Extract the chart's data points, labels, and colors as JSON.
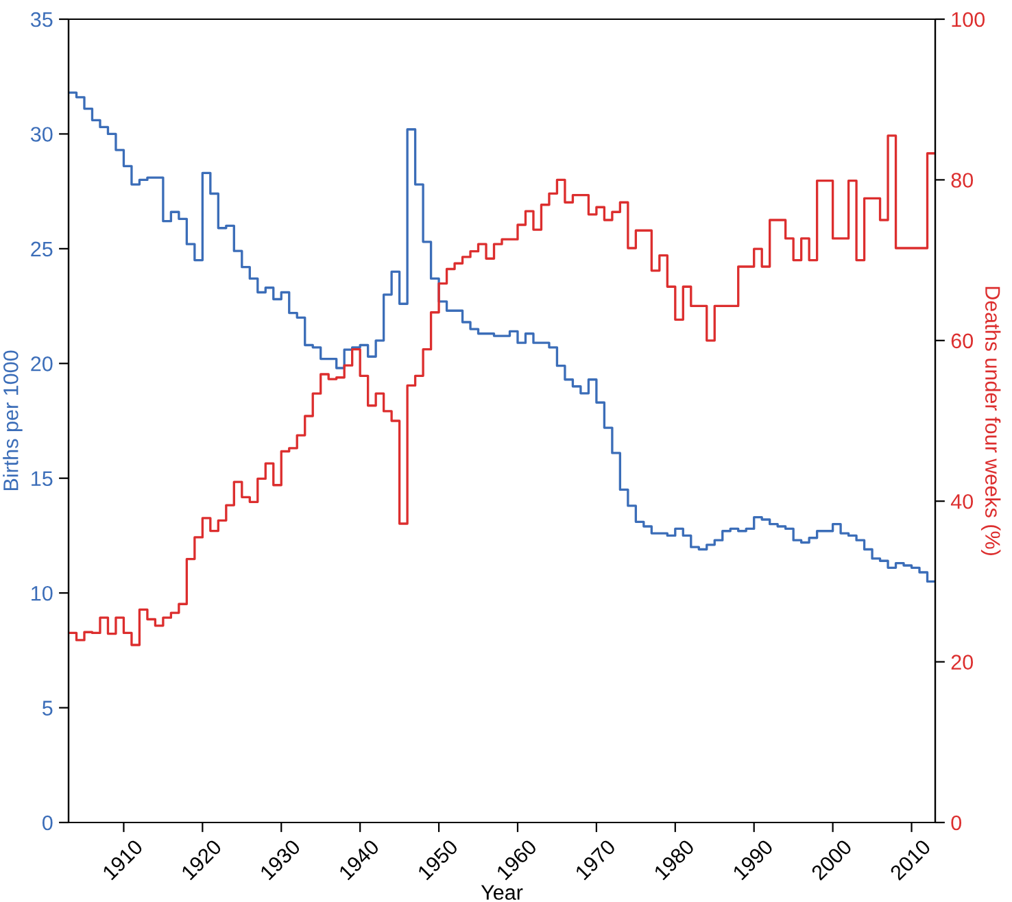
{
  "chart_data": {
    "type": "step",
    "xlabel": "Year",
    "ylabel": "Births per 1000",
    "y2label": "Deaths under four weeks (%)",
    "x": [
      1903,
      1904,
      1905,
      1906,
      1907,
      1908,
      1909,
      1910,
      1911,
      1912,
      1913,
      1914,
      1915,
      1916,
      1917,
      1918,
      1919,
      1920,
      1921,
      1922,
      1923,
      1924,
      1925,
      1926,
      1927,
      1928,
      1929,
      1930,
      1931,
      1932,
      1933,
      1934,
      1935,
      1936,
      1937,
      1938,
      1939,
      1940,
      1941,
      1942,
      1943,
      1944,
      1945,
      1946,
      1947,
      1948,
      1949,
      1950,
      1951,
      1952,
      1953,
      1954,
      1955,
      1956,
      1957,
      1958,
      1959,
      1960,
      1961,
      1962,
      1963,
      1964,
      1965,
      1966,
      1967,
      1968,
      1969,
      1970,
      1971,
      1972,
      1973,
      1974,
      1975,
      1976,
      1977,
      1978,
      1979,
      1980,
      1981,
      1982,
      1983,
      1984,
      1985,
      1986,
      1987,
      1988,
      1989,
      1990,
      1991,
      1992,
      1993,
      1994,
      1995,
      1996,
      1997,
      1998,
      1999,
      2000,
      2001,
      2002,
      2003,
      2004,
      2005,
      2006,
      2007,
      2008,
      2009,
      2010,
      2011,
      2012
    ],
    "series": [
      {
        "color": "#3b6db8",
        "values": [
          31.8,
          31.6,
          31.1,
          30.6,
          30.3,
          30.0,
          29.3,
          28.6,
          27.8,
          28.0,
          28.1,
          28.1,
          26.2,
          26.6,
          26.3,
          25.2,
          24.5,
          28.3,
          27.4,
          25.9,
          26.0,
          24.9,
          24.2,
          23.7,
          23.1,
          23.3,
          22.8,
          23.1,
          22.2,
          22.0,
          20.8,
          20.7,
          20.2,
          20.2,
          19.8,
          20.6,
          20.7,
          20.8,
          20.3,
          21.0,
          23.0,
          24.0,
          22.6,
          30.2,
          27.8,
          25.3,
          23.7,
          22.7,
          22.3,
          22.3,
          21.8,
          21.5,
          21.3,
          21.3,
          21.2,
          21.2,
          21.4,
          20.9,
          21.3,
          20.9,
          20.9,
          20.7,
          19.9,
          19.3,
          19.0,
          18.7,
          19.3,
          18.3,
          17.2,
          16.1,
          14.5,
          13.8,
          13.1,
          12.9,
          12.6,
          12.6,
          12.5,
          12.8,
          12.5,
          12.0,
          11.9,
          12.1,
          12.3,
          12.7,
          12.8,
          12.7,
          12.8,
          13.3,
          13.2,
          13.0,
          12.9,
          12.8,
          12.3,
          12.2,
          12.4,
          12.7,
          12.7,
          13.0,
          12.6,
          12.5,
          12.3,
          11.9,
          11.5,
          11.4,
          11.1,
          11.3,
          11.2,
          11.1,
          10.9,
          10.5
        ]
      },
      {
        "color": "#dc2e2e",
        "axis": "y2",
        "values": [
          23.6,
          22.7,
          23.7,
          23.6,
          25.5,
          23.5,
          25.5,
          23.6,
          22.1,
          26.5,
          25.3,
          24.5,
          25.5,
          26.1,
          27.2,
          32.8,
          35.5,
          37.9,
          36.3,
          37.6,
          39.5,
          42.4,
          40.5,
          39.9,
          42.8,
          44.7,
          42.0,
          46.2,
          46.6,
          48.2,
          50.6,
          53.4,
          55.8,
          55.2,
          55.4,
          56.9,
          58.9,
          55.6,
          51.9,
          53.4,
          51.2,
          50.0,
          37.2,
          54.4,
          55.6,
          58.9,
          63.5,
          67.1,
          68.9,
          69.6,
          70.4,
          71.1,
          72.0,
          70.2,
          72.0,
          72.6,
          72.6,
          74.4,
          76.1,
          73.8,
          76.9,
          78.3,
          80.0,
          77.2,
          78.1,
          78.1,
          75.7,
          76.6,
          75.0,
          76.0,
          77.2,
          71.5,
          73.7,
          73.7,
          68.7,
          70.6,
          66.7,
          62.6,
          66.7,
          64.3,
          64.3,
          60.0,
          64.3,
          64.3,
          64.3,
          69.2,
          69.2,
          71.4,
          69.2,
          75.0,
          75.0,
          72.7,
          70.0,
          72.7,
          70.0,
          79.9,
          79.9,
          72.7,
          72.7,
          79.9,
          70.0,
          77.7,
          77.7,
          75.0,
          85.5,
          71.5,
          71.5,
          71.5,
          71.5,
          83.3
        ]
      }
    ],
    "xlim": [
      1903,
      2013
    ],
    "xticks": [
      1910,
      1920,
      1930,
      1940,
      1950,
      1960,
      1970,
      1980,
      1990,
      2000,
      2010
    ],
    "ylim": [
      0,
      35
    ],
    "yticks": [
      0,
      5,
      10,
      15,
      20,
      25,
      30,
      35
    ],
    "y2lim": [
      0,
      100
    ],
    "y2ticks": [
      0,
      20,
      40,
      60,
      80,
      100
    ],
    "grid": false,
    "legend": false
  }
}
